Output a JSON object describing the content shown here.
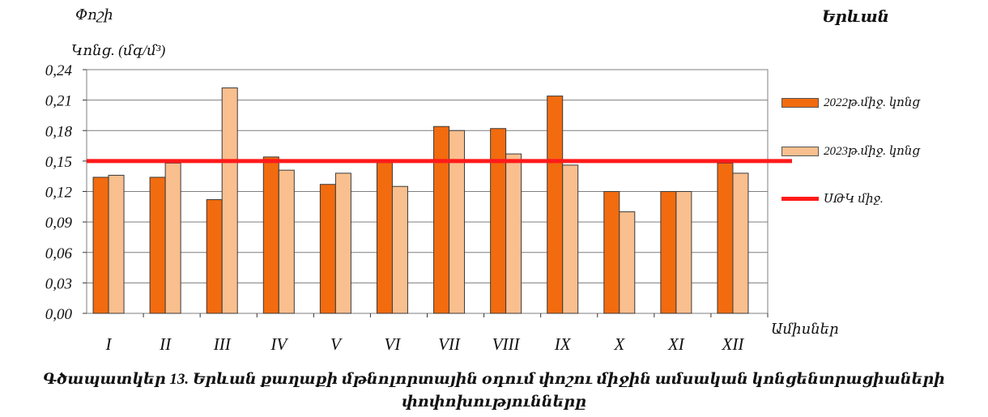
{
  "header": {
    "ylabel_line1": "Փոշի",
    "ylabel_line2": "Կոնց. (մգ/մ³)",
    "city": "Երևան",
    "xlabel": "Ամիսներ"
  },
  "caption": {
    "line1": "Գծապատկեր 13. Երևան քաղաքի մթնոլորտային օդում փոշու միջին ամսական կոնցենտրացիաների",
    "line2": "փոփոխությունները"
  },
  "legend": {
    "s2022": "2022թ.միջ. կոնց",
    "s2023": "2023թ.միջ. կոնց",
    "limit": "ՍԹԿ միջ."
  },
  "colors": {
    "s2022": "#f26b0f",
    "s2023": "#f9bf8e",
    "limit": "#ff1a1a",
    "grid": "#7f7f7f"
  },
  "chart_data": {
    "type": "bar",
    "categories": [
      "I",
      "II",
      "III",
      "IV",
      "V",
      "VI",
      "VII",
      "VIII",
      "IX",
      "X",
      "XI",
      "XII"
    ],
    "series": [
      {
        "name": "2022թ.միջ. կոնց",
        "values": [
          0.134,
          0.134,
          0.112,
          0.154,
          0.127,
          0.15,
          0.184,
          0.182,
          0.214,
          0.12,
          0.12,
          0.148
        ]
      },
      {
        "name": "2023թ.միջ. կոնց",
        "values": [
          0.136,
          0.148,
          0.222,
          0.141,
          0.138,
          0.125,
          0.18,
          0.157,
          0.146,
          0.1,
          0.12,
          0.138
        ]
      }
    ],
    "reference_line": {
      "name": "ՍԹԿ միջ.",
      "value": 0.15
    },
    "ylim": [
      0,
      0.24
    ],
    "yticks": [
      "0,00",
      "0,03",
      "0,06",
      "0,09",
      "0,12",
      "0,15",
      "0,18",
      "0,21",
      "0,24"
    ],
    "ylabel": "Փոշի Կոնց. (մգ/մ³)",
    "xlabel": "Ամիսներ",
    "grid": true,
    "legend_position": "right"
  }
}
